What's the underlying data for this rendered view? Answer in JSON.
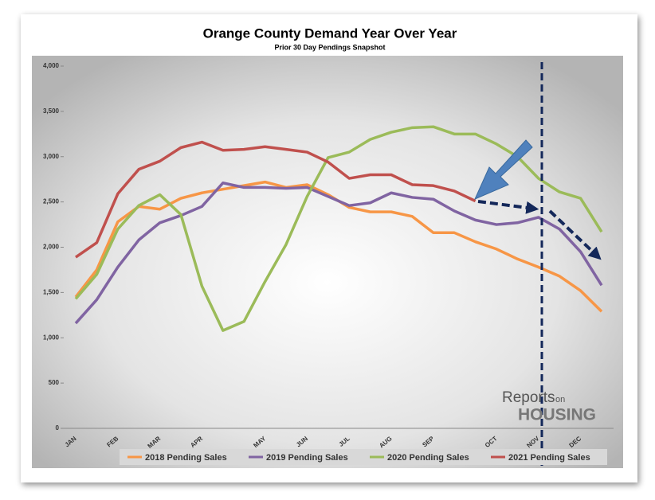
{
  "chart_data": {
    "type": "line",
    "title": "Orange County Demand Year Over Year",
    "subtitle": "Prior 30 Day Pendings Snapshot",
    "logo": {
      "line1": "Reports",
      "line1b": "on",
      "line2": "HOUSING"
    },
    "categories": [
      "JAN",
      null,
      "FEB",
      null,
      "MAR",
      null,
      "APR",
      null,
      null,
      "MAY",
      null,
      "JUN",
      null,
      "JUL",
      null,
      "AUG",
      null,
      "SEP",
      null,
      null,
      "OCT",
      null,
      "NOV",
      null,
      "DEC",
      null
    ],
    "series": [
      {
        "name": "2018 Pending Sales",
        "color": "#f79646",
        "values": [
          1450,
          1750,
          2280,
          2450,
          2420,
          2540,
          2600,
          2640,
          2680,
          2720,
          2660,
          2690,
          2580,
          2440,
          2390,
          2390,
          2340,
          2160,
          2160,
          2060,
          1980,
          1870,
          1780,
          1680,
          1520,
          1290
        ]
      },
      {
        "name": "2019 Pending Sales",
        "color": "#8064a2",
        "values": [
          1160,
          1420,
          1780,
          2080,
          2270,
          2350,
          2450,
          2710,
          2660,
          2660,
          2650,
          2660,
          2560,
          2460,
          2490,
          2600,
          2550,
          2530,
          2400,
          2300,
          2250,
          2270,
          2330,
          2200,
          1950,
          1580
        ]
      },
      {
        "name": "2020 Pending Sales",
        "color": "#9bbb59",
        "values": [
          1430,
          1700,
          2200,
          2460,
          2580,
          2360,
          1570,
          1080,
          1180,
          1620,
          2030,
          2560,
          2990,
          3050,
          3190,
          3270,
          3320,
          3330,
          3250,
          3250,
          3140,
          3000,
          2760,
          2610,
          2540,
          2170
        ]
      },
      {
        "name": "2021 Pending Sales",
        "color": "#c0504d",
        "values": [
          1890,
          2050,
          2590,
          2860,
          2950,
          3100,
          3160,
          3070,
          3080,
          3110,
          3080,
          3050,
          2940,
          2760,
          2800,
          2800,
          2690,
          2680,
          2620,
          2510,
          null,
          null,
          null,
          null,
          null,
          null
        ]
      }
    ],
    "ylim": [
      0,
      4000
    ],
    "yticks": [
      0,
      500,
      {
        "value": 1000,
        "label": "1,000"
      },
      {
        "value": 1500,
        "label": "1,500"
      },
      {
        "value": 2000,
        "label": "2,000"
      },
      {
        "value": 2500,
        "label": "2,500"
      },
      {
        "value": 3000,
        "label": "3,000"
      },
      {
        "value": 3500,
        "label": "3,500"
      },
      {
        "value": 4000,
        "label": "4,000"
      }
    ],
    "grid": false,
    "legend": "bottom"
  }
}
